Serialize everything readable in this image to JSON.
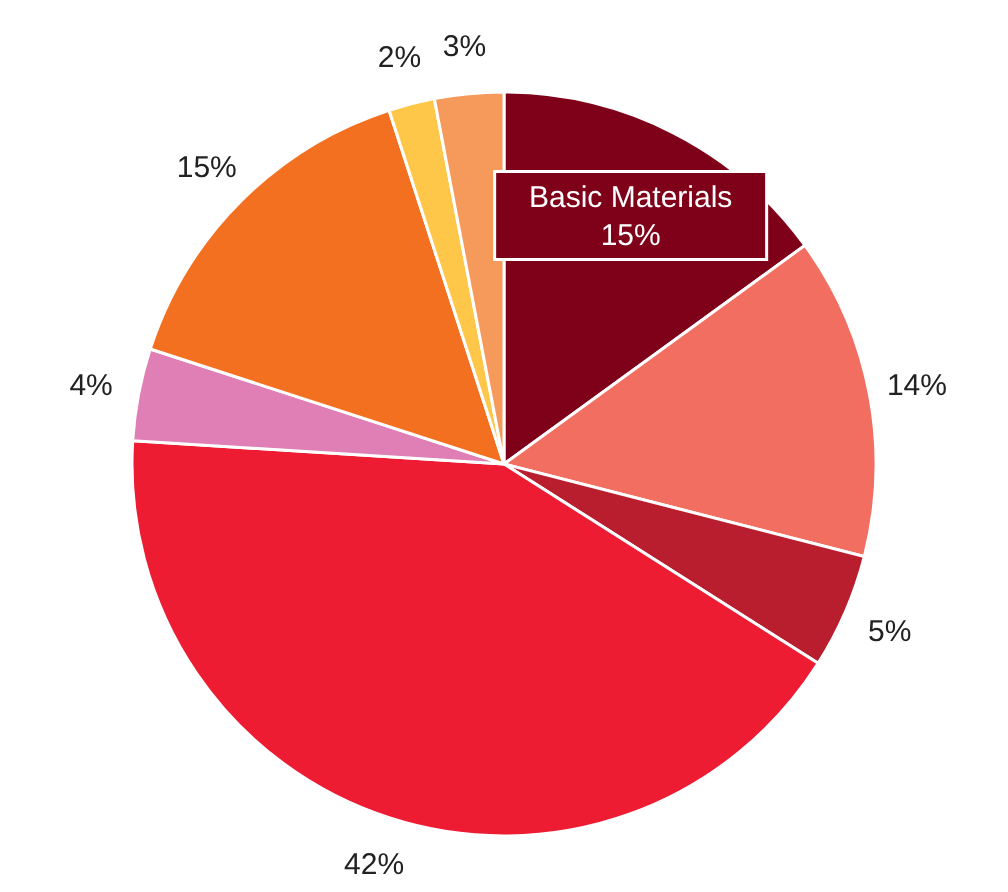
{
  "chart_data": {
    "type": "pie",
    "categories": [
      "Basic Materials",
      null,
      null,
      null,
      null,
      null,
      null,
      null
    ],
    "values": [
      15,
      14,
      5,
      42,
      4,
      15,
      2,
      3
    ],
    "value_labels": [
      "15%",
      "14%",
      "5%",
      "42%",
      "4%",
      "15%",
      "2%",
      "3%"
    ],
    "colors": [
      "#7f0019",
      "#f26e60",
      "#b81e2e",
      "#ed1c33",
      "#e07fb5",
      "#f37021",
      "#fec74a",
      "#f69a5b"
    ]
  }
}
